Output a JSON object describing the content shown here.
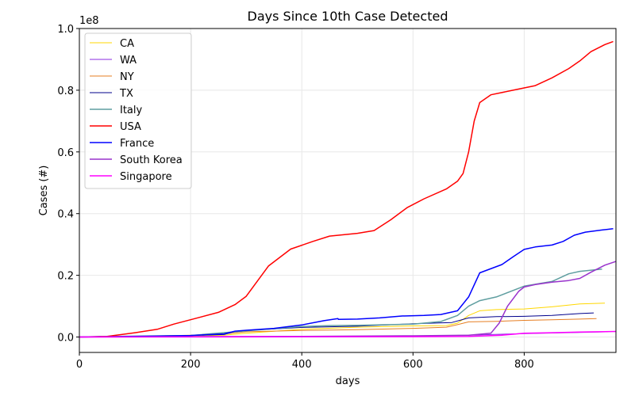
{
  "chart_data": {
    "type": "line",
    "title": "Days Since 10th Case Detected",
    "xlabel": "days",
    "ylabel": "Cases (#)",
    "y_offset_label": "1e8",
    "xlim": [
      0,
      965
    ],
    "ylim": [
      -0.05,
      1.0
    ],
    "x_ticks": [
      0,
      200,
      400,
      600,
      800
    ],
    "y_ticks": [
      0.0,
      0.2,
      0.4,
      0.6,
      0.8,
      1.0
    ],
    "x_tick_labels": [
      "0",
      "200",
      "400",
      "600",
      "800"
    ],
    "y_tick_labels": [
      "0.0",
      "0.2",
      "0.4",
      "0.6",
      "0.8",
      "1.0"
    ],
    "grid": true,
    "legend_position": "top-left",
    "series": [
      {
        "name": "CA",
        "color": "#ffd700",
        "width": 1,
        "x": [
          0,
          100,
          200,
          260,
          300,
          400,
          500,
          600,
          660,
          680,
          700,
          720,
          750,
          800,
          850,
          900,
          945
        ],
        "y": [
          0,
          0.001,
          0.004,
          0.006,
          0.012,
          0.025,
          0.032,
          0.036,
          0.037,
          0.045,
          0.07,
          0.085,
          0.089,
          0.091,
          0.098,
          0.107,
          0.11
        ]
      },
      {
        "name": "WA",
        "color": "#8a2be2",
        "width": 1,
        "x": [
          0,
          200,
          400,
          600,
          700,
          800,
          900,
          950
        ],
        "y": [
          0,
          0.0005,
          0.001,
          0.003,
          0.006,
          0.011,
          0.015,
          0.017
        ]
      },
      {
        "name": "NY",
        "color": "#e67e22",
        "width": 1,
        "x": [
          0,
          100,
          200,
          260,
          300,
          400,
          500,
          600,
          660,
          680,
          700,
          750,
          800,
          850,
          900,
          930
        ],
        "y": [
          0,
          0.002,
          0.006,
          0.01,
          0.017,
          0.021,
          0.024,
          0.028,
          0.032,
          0.04,
          0.049,
          0.051,
          0.054,
          0.056,
          0.058,
          0.06
        ]
      },
      {
        "name": "TX",
        "color": "#00008b",
        "width": 1,
        "x": [
          0,
          100,
          200,
          260,
          280,
          300,
          400,
          500,
          600,
          670,
          700,
          750,
          800,
          850,
          900,
          925
        ],
        "y": [
          0,
          0.002,
          0.005,
          0.008,
          0.018,
          0.021,
          0.031,
          0.035,
          0.043,
          0.047,
          0.062,
          0.066,
          0.067,
          0.07,
          0.076,
          0.078
        ]
      },
      {
        "name": "Italy",
        "color": "#5f9ea0",
        "width": 1.5,
        "x": [
          0,
          100,
          200,
          300,
          400,
          450,
          500,
          600,
          650,
          680,
          700,
          720,
          750,
          800,
          850,
          880,
          900,
          940
        ],
        "y": [
          0,
          0.003,
          0.005,
          0.02,
          0.034,
          0.037,
          0.038,
          0.042,
          0.05,
          0.07,
          0.1,
          0.118,
          0.13,
          0.165,
          0.18,
          0.205,
          0.213,
          0.22
        ]
      },
      {
        "name": "USA",
        "color": "#ff0000",
        "width": 1.5,
        "x": [
          0,
          50,
          100,
          140,
          170,
          200,
          250,
          280,
          300,
          340,
          380,
          420,
          450,
          500,
          530,
          560,
          590,
          620,
          660,
          680,
          690,
          700,
          710,
          720,
          740,
          780,
          820,
          850,
          880,
          900,
          920,
          945,
          960
        ],
        "y": [
          0,
          0.002,
          0.014,
          0.025,
          0.042,
          0.056,
          0.08,
          0.105,
          0.132,
          0.23,
          0.285,
          0.31,
          0.327,
          0.336,
          0.345,
          0.38,
          0.42,
          0.448,
          0.48,
          0.505,
          0.53,
          0.6,
          0.7,
          0.76,
          0.785,
          0.8,
          0.815,
          0.84,
          0.87,
          0.895,
          0.925,
          0.948,
          0.958
        ]
      },
      {
        "name": "France",
        "color": "#0000ff",
        "width": 1.5,
        "x": [
          0,
          100,
          200,
          260,
          280,
          300,
          350,
          400,
          440,
          465,
          466,
          500,
          540,
          580,
          620,
          650,
          680,
          700,
          720,
          760,
          780,
          800,
          820,
          850,
          870,
          890,
          910,
          940,
          960
        ],
        "y": [
          0,
          0.002,
          0.005,
          0.01,
          0.019,
          0.022,
          0.028,
          0.039,
          0.053,
          0.06,
          0.057,
          0.058,
          0.062,
          0.068,
          0.07,
          0.073,
          0.085,
          0.13,
          0.208,
          0.235,
          0.26,
          0.284,
          0.292,
          0.298,
          0.31,
          0.33,
          0.34,
          0.347,
          0.351
        ]
      },
      {
        "name": "South Korea",
        "color": "#9932cc",
        "width": 1.5,
        "x": [
          0,
          200,
          400,
          600,
          700,
          740,
          755,
          770,
          790,
          800,
          820,
          850,
          880,
          900,
          920,
          945,
          965
        ],
        "y": [
          0,
          0.001,
          0.002,
          0.004,
          0.006,
          0.012,
          0.045,
          0.1,
          0.148,
          0.162,
          0.17,
          0.178,
          0.183,
          0.19,
          0.21,
          0.233,
          0.245
        ]
      },
      {
        "name": "Singapore",
        "color": "#ff00ff",
        "width": 1.5,
        "x": [
          0,
          200,
          400,
          600,
          700,
          760,
          800,
          850,
          900,
          965
        ],
        "y": [
          0,
          0.0004,
          0.0007,
          0.001,
          0.002,
          0.006,
          0.012,
          0.014,
          0.016,
          0.018
        ]
      }
    ]
  }
}
